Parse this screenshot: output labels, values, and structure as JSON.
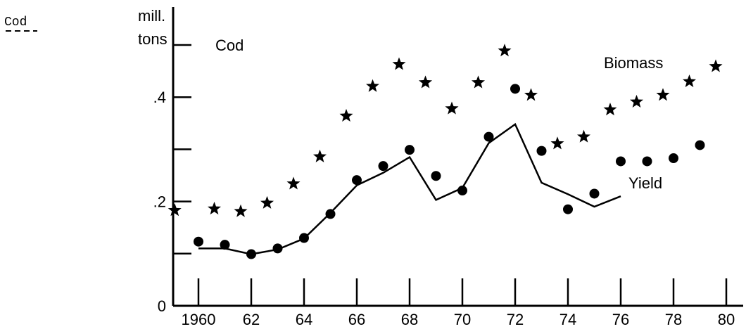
{
  "chart_data": {
    "type": "scatter",
    "corner_label": "Cod",
    "title": "Cod",
    "ylabel_line1": "mill.",
    "ylabel_line2": "tons",
    "xlim": [
      1959.5,
      1980.5
    ],
    "ylim": [
      0,
      0.53
    ],
    "x_ticks": [
      1960,
      1962,
      1964,
      1966,
      1968,
      1970,
      1972,
      1974,
      1976,
      1978,
      1980
    ],
    "x_tick_labels": [
      "1960",
      "62",
      "64",
      "66",
      "68",
      "70",
      "72",
      "74",
      "76",
      "78",
      "80"
    ],
    "y_ticks": [
      0.1,
      0.2,
      0.3,
      0.4,
      0.5
    ],
    "y_tick_labels": [
      {
        "value": 0,
        "label": "0"
      },
      {
        "value": 0.2,
        "label": ".2"
      },
      {
        "value": 0.4,
        "label": ".4"
      }
    ],
    "series": [
      {
        "name": "Biomass",
        "marker": "star",
        "x": [
          1959.1,
          1960.6,
          1961.6,
          1962.6,
          1963.6,
          1964.6,
          1965.6,
          1966.6,
          1967.6,
          1968.6,
          1969.6,
          1970.6,
          1971.6,
          1972.6,
          1973.6,
          1974.6,
          1975.6,
          1976.6,
          1977.6,
          1978.6,
          1979.6
        ],
        "y": [
          0.183,
          0.186,
          0.181,
          0.197,
          0.234,
          0.286,
          0.364,
          0.421,
          0.463,
          0.428,
          0.378,
          0.428,
          0.489,
          0.404,
          0.311,
          0.324,
          0.376,
          0.391,
          0.404,
          0.43,
          0.459
        ]
      },
      {
        "name": "Yield",
        "marker": "circle",
        "x": [
          1960,
          1961,
          1962,
          1963,
          1964,
          1965,
          1966,
          1967,
          1968,
          1969,
          1970,
          1971,
          1972,
          1973,
          1974,
          1975,
          1976,
          1977,
          1978,
          1979
        ],
        "y": [
          0.123,
          0.117,
          0.099,
          0.11,
          0.13,
          0.176,
          0.241,
          0.268,
          0.299,
          0.249,
          0.221,
          0.324,
          0.416,
          0.297,
          0.185,
          0.215,
          0.277,
          0.277,
          0.283,
          0.308
        ]
      },
      {
        "name": "",
        "marker": "line",
        "x": [
          1960,
          1961,
          1962,
          1963,
          1964,
          1965,
          1966,
          1967,
          1968,
          1969,
          1970,
          1971,
          1972,
          1973,
          1974,
          1975,
          1976
        ],
        "y": [
          0.11,
          0.11,
          0.099,
          0.108,
          0.129,
          0.178,
          0.231,
          0.255,
          0.285,
          0.203,
          0.226,
          0.312,
          0.348,
          0.236,
          0.214,
          0.19,
          0.21
        ]
      }
    ]
  }
}
